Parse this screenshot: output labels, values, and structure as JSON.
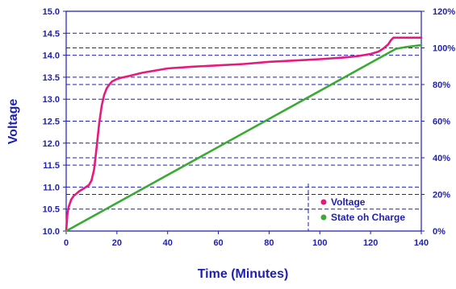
{
  "chart_data": {
    "type": "line",
    "title": "",
    "xlabel": "Time (Minutes)",
    "ylabel": "Voltage",
    "y2label": "",
    "xlim": [
      0,
      140
    ],
    "ylim": [
      10.0,
      15.0
    ],
    "y2lim": [
      0,
      120
    ],
    "x_ticks": [
      0,
      20,
      40,
      60,
      80,
      100,
      120,
      140
    ],
    "x_tick_labels": [
      "0",
      "20",
      "40",
      "60",
      "80",
      "100",
      "120",
      "140"
    ],
    "y_ticks": [
      10.0,
      10.5,
      11.0,
      11.5,
      12.0,
      12.5,
      13.0,
      13.5,
      14.0,
      14.5,
      15.0
    ],
    "y_tick_labels": [
      "10.0",
      "10.5",
      "11.0",
      "11.5",
      "12.0",
      "12.5",
      "13.0",
      "13.5",
      "14.0",
      "14.5",
      "15.0"
    ],
    "y2_ticks": [
      0,
      20,
      40,
      60,
      80,
      100,
      120
    ],
    "y2_tick_labels": [
      "0%",
      "20%",
      "40%",
      "60%",
      "80%",
      "100%",
      "120%"
    ],
    "grid": "horizontal-dashed",
    "legend_position": "bottom-right",
    "series": [
      {
        "name": "Voltage",
        "axis": "left",
        "color": "#e8197d",
        "x": [
          0,
          0.5,
          1,
          2,
          3,
          4,
          5,
          7,
          9,
          10,
          11,
          12,
          13,
          14,
          15,
          16,
          17,
          18,
          20,
          22,
          25,
          30,
          40,
          50,
          60,
          70,
          80,
          90,
          100,
          110,
          115,
          120,
          123,
          125,
          127,
          128,
          129,
          130,
          140
        ],
        "y": [
          10.0,
          10.4,
          10.55,
          10.72,
          10.8,
          10.85,
          10.9,
          10.97,
          11.05,
          11.15,
          11.4,
          11.9,
          12.45,
          12.85,
          13.1,
          13.25,
          13.33,
          13.4,
          13.46,
          13.49,
          13.53,
          13.6,
          13.7,
          13.74,
          13.77,
          13.8,
          13.85,
          13.88,
          13.91,
          13.95,
          13.98,
          14.03,
          14.08,
          14.15,
          14.25,
          14.34,
          14.4,
          14.4,
          14.4
        ]
      },
      {
        "name": "State oh Charge",
        "axis": "right",
        "color": "#3aaa35",
        "x": [
          0,
          128,
          130,
          134,
          140
        ],
        "y": [
          0,
          98,
          99.5,
          100.5,
          101.5
        ]
      }
    ],
    "legend": {
      "entries": [
        "Voltage",
        "State oh Charge"
      ]
    },
    "colors": {
      "axis": "#1f1fb0",
      "grid": "#1f1fb0",
      "text": "#1f1fb0",
      "voltage": "#e8197d",
      "soc": "#3aaa35"
    }
  }
}
